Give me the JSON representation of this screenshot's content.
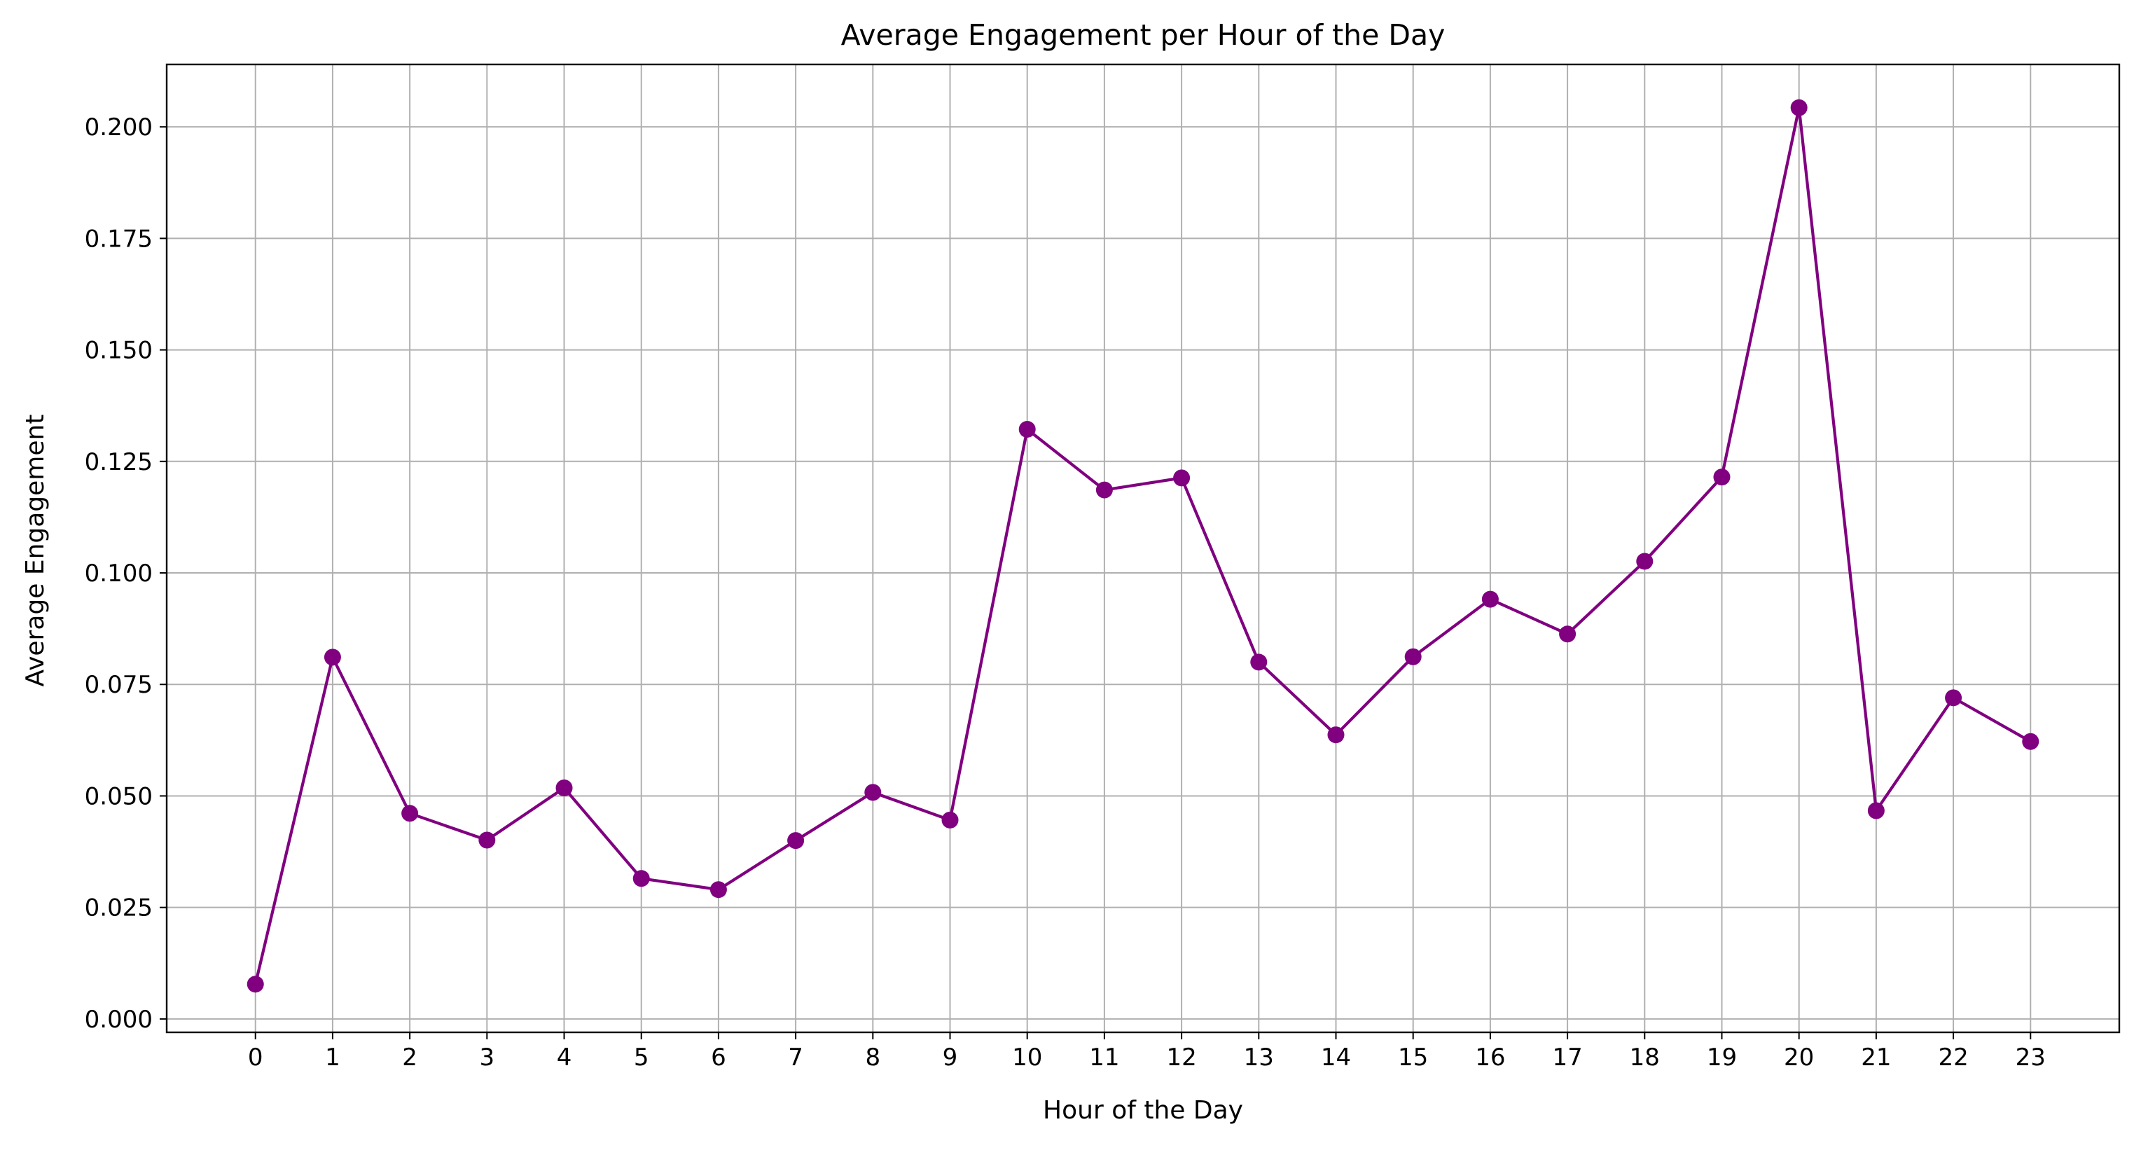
{
  "chart_data": {
    "type": "line",
    "title": "Average Engagement per Hour of the Day",
    "xlabel": "Hour of the Day",
    "ylabel": "Average Engagement",
    "x": [
      0,
      1,
      2,
      3,
      4,
      5,
      6,
      7,
      8,
      9,
      10,
      11,
      12,
      13,
      14,
      15,
      16,
      17,
      18,
      19,
      20,
      21,
      22,
      23
    ],
    "x_tick_labels": [
      "0",
      "1",
      "2",
      "3",
      "4",
      "5",
      "6",
      "7",
      "8",
      "9",
      "10",
      "11",
      "12",
      "13",
      "14",
      "15",
      "16",
      "17",
      "18",
      "19",
      "20",
      "21",
      "22",
      "23"
    ],
    "xlim": [
      -1.15,
      24.15
    ],
    "y_ticks": [
      0.0,
      0.025,
      0.05,
      0.075,
      0.1,
      0.125,
      0.15,
      0.175,
      0.2
    ],
    "y_tick_labels": [
      "0.000",
      "0.025",
      "0.050",
      "0.075",
      "0.100",
      "0.125",
      "0.150",
      "0.175",
      "0.200"
    ],
    "ylim": [
      -0.003,
      0.214
    ],
    "grid": true,
    "legend": "none",
    "series": [
      {
        "values": [
          0.0078,
          0.0811,
          0.0461,
          0.0401,
          0.0518,
          0.0315,
          0.029,
          0.04,
          0.0508,
          0.0446,
          0.1322,
          0.1186,
          0.1213,
          0.08,
          0.0637,
          0.0812,
          0.0941,
          0.0863,
          0.1026,
          0.1215,
          0.2043,
          0.0467,
          0.072,
          0.0622
        ],
        "color": "#800080",
        "marker": "circle"
      }
    ]
  }
}
